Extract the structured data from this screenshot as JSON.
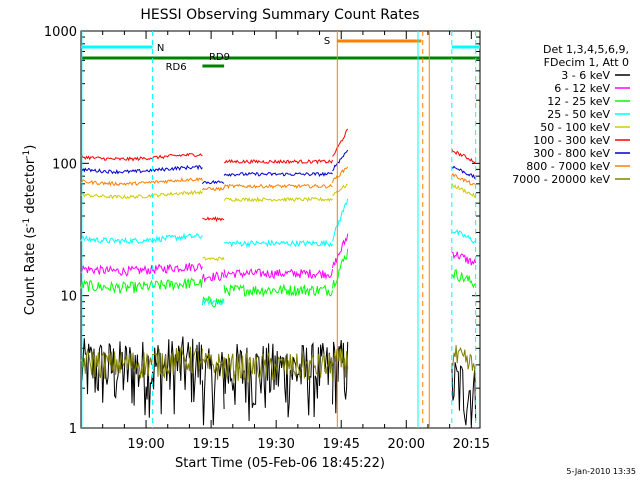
{
  "chart_data": {
    "type": "line",
    "title": "HESSI Observing Summary Count Rates",
    "xlabel": "Start Time (05-Feb-06 18:45:22)",
    "ylabel_main": "Count Rate (s",
    "ylabel_sup1": "-1",
    "ylabel_mid": " detector",
    "ylabel_sup2": "-1",
    "ylabel_end": ")",
    "y_scale": "log",
    "ylim": [
      1,
      1000
    ],
    "xlim_minutes": [
      0,
      92
    ],
    "x_ticks": [
      {
        "minute": 15,
        "label": "19:00"
      },
      {
        "minute": 30,
        "label": "19:15"
      },
      {
        "minute": 45,
        "label": "19:30"
      },
      {
        "minute": 60,
        "label": "19:45"
      },
      {
        "minute": 75,
        "label": "20:00"
      },
      {
        "minute": 90,
        "label": "20:15"
      }
    ],
    "y_ticks": [
      {
        "value": 1,
        "label": "1"
      },
      {
        "value": 10,
        "label": "10"
      },
      {
        "value": 100,
        "label": "100"
      },
      {
        "value": 1000,
        "label": "1000"
      }
    ],
    "legend_header": [
      "Det 1,3,4,5,6,9,",
      "FDecim 1, Att 0"
    ],
    "series": [
      {
        "name": "3 - 6 keV",
        "color": "#000000"
      },
      {
        "name": "6 - 12 keV",
        "color": "#ff00ff"
      },
      {
        "name": "12 - 25 keV",
        "color": "#00ff00"
      },
      {
        "name": "25 - 50 keV",
        "color": "#00ffff"
      },
      {
        "name": "50 - 100 keV",
        "color": "#cccc00"
      },
      {
        "name": "100 - 300 keV",
        "color": "#ff0000"
      },
      {
        "name": "300 - 800 keV",
        "color": "#0000cc"
      },
      {
        "name": "800 - 7000 keV",
        "color": "#ff8000"
      },
      {
        "name": "7000 - 20000 keV",
        "color": "#808000"
      }
    ],
    "intervals": [
      {
        "label": "N",
        "color": "#00ffff"
      },
      {
        "label": "S",
        "color": "#ff8000"
      },
      {
        "label": "RD6",
        "color": "#008000"
      },
      {
        "label": "RD9",
        "color": "#008000"
      }
    ]
  },
  "footer": {
    "timestamp": "5-Jan-2010 13:35"
  }
}
